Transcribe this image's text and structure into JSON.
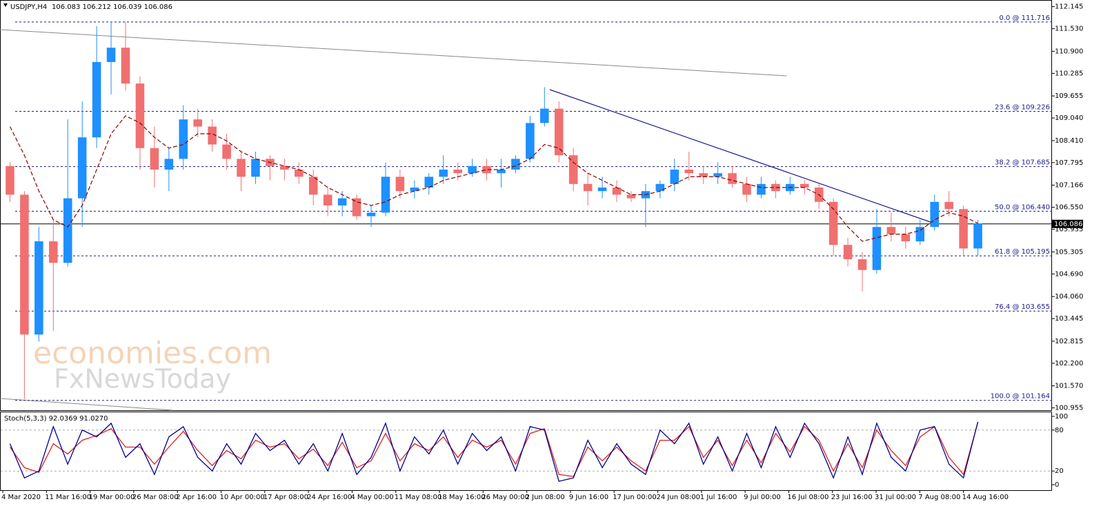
{
  "chart_data": {
    "type": "candlestick",
    "symbol": "USDJPY,H4",
    "quote": "106.083 106.212 106.039 106.086",
    "bull_color": "#1e90ff",
    "bear_color": "#f07070",
    "ma_color": "#8b0000",
    "ylim": [
      100.89,
      112.33
    ],
    "yticks": [
      112.145,
      {
        "value": 111.53,
        "label": "111.530"
      },
      {
        "value": 110.9,
        "label": "110.900"
      },
      110.285,
      109.655,
      {
        "value": 109.04,
        "label": "109.040"
      },
      {
        "value": 108.41,
        "label": "108.410"
      },
      107.795,
      107.166,
      {
        "value": 106.55,
        "label": "106.550"
      },
      105.935,
      105.305,
      {
        "value": 104.69,
        "label": "104.690"
      },
      {
        "value": 104.06,
        "label": "104.060"
      },
      103.445,
      102.815,
      {
        "value": 102.2,
        "label": "102.200"
      },
      {
        "value": 101.57,
        "label": "101.570"
      },
      100.955
    ],
    "current_price": 106.086,
    "fib_levels": [
      {
        "value": 111.716,
        "label": "0.0 @ 111.716"
      },
      {
        "value": 109.226,
        "label": "23.6 @ 109.226"
      },
      {
        "value": 107.685,
        "label": "38.2 @ 107.685"
      },
      {
        "value": 106.44,
        "label": "50.0 @ 106.440"
      },
      {
        "value": 105.195,
        "label": "61.8 @ 105.195"
      },
      {
        "value": 103.655,
        "label": "76.4 @ 103.655"
      },
      {
        "value": 101.164,
        "label": "100.0 @ 101.164"
      }
    ],
    "time_labels": [
      "4 Mar 2020",
      "11 Mar 16:00",
      "19 Mar 00:00",
      "26 Mar 08:00",
      "2 Apr 16:00",
      "10 Apr 00:00",
      "17 Apr 08:00",
      "24 Apr 16:00",
      "4 May 00:00",
      "11 May 08:00",
      "18 May 16:00",
      "26 May 00:00",
      "2 Jun 08:00",
      "9 Jun 16:00",
      "17 Jun 00:00",
      "24 Jun 08:00",
      "1 Jul 16:00",
      "9 Jul 00:00",
      "16 Jul 08:00",
      "23 Jul 16:00",
      "31 Jul 00:00",
      "7 Aug 08:00",
      "14 Aug 16:00"
    ],
    "ohlc": [
      [
        107.7,
        107.8,
        106.7,
        106.9
      ],
      [
        106.9,
        107.0,
        101.2,
        103.0
      ],
      [
        103.0,
        106.0,
        102.8,
        105.6
      ],
      [
        105.6,
        106.2,
        103.1,
        105.0
      ],
      [
        105.0,
        109.0,
        104.9,
        106.8
      ],
      [
        106.8,
        109.5,
        106.0,
        108.5
      ],
      [
        108.5,
        111.6,
        108.2,
        110.6
      ],
      [
        110.6,
        111.7,
        109.7,
        111.0
      ],
      [
        111.0,
        111.72,
        109.8,
        110.0
      ],
      [
        110.0,
        110.2,
        107.6,
        108.2
      ],
      [
        108.2,
        108.8,
        107.1,
        107.6
      ],
      [
        107.6,
        108.2,
        107.0,
        107.9
      ],
      [
        107.9,
        109.4,
        107.6,
        109.0
      ],
      [
        109.0,
        109.3,
        108.5,
        108.8
      ],
      [
        108.8,
        109.0,
        108.1,
        108.3
      ],
      [
        108.3,
        108.6,
        107.6,
        107.9
      ],
      [
        107.9,
        108.1,
        107.0,
        107.4
      ],
      [
        107.4,
        108.1,
        107.2,
        107.9
      ],
      [
        107.9,
        108.0,
        107.3,
        107.7
      ],
      [
        107.7,
        107.9,
        107.3,
        107.6
      ],
      [
        107.6,
        107.8,
        107.2,
        107.4
      ],
      [
        107.4,
        107.6,
        106.6,
        106.9
      ],
      [
        106.9,
        107.1,
        106.3,
        106.6
      ],
      [
        106.6,
        107.0,
        106.3,
        106.8
      ],
      [
        106.8,
        106.9,
        106.2,
        106.3
      ],
      [
        106.3,
        106.6,
        106.0,
        106.4
      ],
      [
        106.4,
        107.8,
        106.3,
        107.4
      ],
      [
        107.4,
        107.6,
        106.8,
        107.0
      ],
      [
        107.0,
        107.3,
        106.8,
        107.1
      ],
      [
        107.1,
        107.5,
        106.9,
        107.4
      ],
      [
        107.4,
        108.0,
        107.2,
        107.6
      ],
      [
        107.6,
        107.8,
        107.3,
        107.5
      ],
      [
        107.5,
        107.9,
        107.4,
        107.7
      ],
      [
        107.7,
        107.9,
        107.3,
        107.5
      ],
      [
        107.5,
        107.9,
        107.1,
        107.6
      ],
      [
        107.6,
        108.0,
        107.5,
        107.9
      ],
      [
        107.9,
        109.1,
        107.8,
        108.9
      ],
      [
        108.9,
        109.9,
        108.8,
        109.3
      ],
      [
        109.3,
        109.5,
        107.8,
        108.0
      ],
      [
        108.0,
        108.2,
        107.0,
        107.2
      ],
      [
        107.2,
        107.5,
        106.6,
        107.0
      ],
      [
        107.0,
        107.4,
        106.8,
        107.1
      ],
      [
        107.1,
        107.3,
        106.7,
        106.9
      ],
      [
        106.9,
        107.0,
        106.7,
        106.8
      ],
      [
        106.8,
        107.2,
        106.0,
        107.0
      ],
      [
        107.0,
        107.3,
        106.8,
        107.2
      ],
      [
        107.2,
        107.9,
        107.0,
        107.6
      ],
      [
        107.6,
        108.1,
        107.3,
        107.5
      ],
      [
        107.5,
        107.7,
        107.2,
        107.4
      ],
      [
        107.4,
        107.8,
        107.2,
        107.5
      ],
      [
        107.5,
        107.7,
        107.1,
        107.2
      ],
      [
        107.2,
        107.4,
        106.7,
        106.9
      ],
      [
        106.9,
        107.4,
        106.8,
        107.2
      ],
      [
        107.2,
        107.3,
        106.8,
        107.0
      ],
      [
        107.0,
        107.4,
        106.9,
        107.2
      ],
      [
        107.2,
        107.3,
        106.9,
        107.1
      ],
      [
        107.1,
        107.2,
        106.5,
        106.7
      ],
      [
        106.7,
        106.8,
        105.2,
        105.5
      ],
      [
        105.5,
        105.7,
        104.9,
        105.1
      ],
      [
        105.1,
        105.3,
        104.2,
        104.8
      ],
      [
        104.8,
        106.5,
        104.7,
        106.0
      ],
      [
        106.0,
        106.4,
        105.6,
        105.8
      ],
      [
        105.8,
        106.0,
        105.4,
        105.6
      ],
      [
        105.6,
        106.2,
        105.5,
        106.0
      ],
      [
        106.0,
        106.9,
        105.9,
        106.7
      ],
      [
        106.7,
        107.0,
        106.3,
        106.5
      ],
      [
        106.5,
        106.6,
        105.2,
        105.4
      ],
      [
        105.4,
        106.2,
        105.2,
        106.1
      ]
    ],
    "ma": [
      108.8,
      108.0,
      107.0,
      106.2,
      106.0,
      106.6,
      107.6,
      108.6,
      109.1,
      108.9,
      108.5,
      108.2,
      108.3,
      108.6,
      108.6,
      108.4,
      108.1,
      107.9,
      107.8,
      107.7,
      107.6,
      107.4,
      107.1,
      106.9,
      106.7,
      106.6,
      106.7,
      106.9,
      107.0,
      107.1,
      107.3,
      107.4,
      107.5,
      107.6,
      107.6,
      107.7,
      107.9,
      108.3,
      108.2,
      107.8,
      107.5,
      107.3,
      107.1,
      106.9,
      106.9,
      107.0,
      107.2,
      107.4,
      107.4,
      107.4,
      107.3,
      107.2,
      107.1,
      107.1,
      107.1,
      107.1,
      106.9,
      106.5,
      106.0,
      105.6,
      105.7,
      105.8,
      105.8,
      105.9,
      106.2,
      106.4,
      106.3,
      106.1
    ],
    "watermark": [
      "economies.com",
      "FxNewsToday"
    ],
    "stoch": {
      "title": "Stoch(5,3,3) 92.0369 91.0270",
      "ylim": [
        -8,
        107
      ],
      "yticks": [
        100,
        80,
        20,
        0
      ],
      "series": [
        {
          "color": "#00008b",
          "values": [
            60,
            10,
            20,
            85,
            30,
            80,
            70,
            90,
            40,
            60,
            15,
            70,
            85,
            40,
            20,
            60,
            30,
            75,
            50,
            65,
            30,
            60,
            20,
            75,
            15,
            40,
            90,
            20,
            70,
            45,
            80,
            30,
            75,
            50,
            70,
            20,
            85,
            80,
            5,
            10,
            65,
            25,
            60,
            30,
            15,
            80,
            60,
            90,
            30,
            70,
            20,
            75,
            25,
            85,
            40,
            90,
            60,
            10,
            70,
            15,
            90,
            40,
            20,
            80,
            85,
            30,
            10,
            92
          ]
        },
        {
          "color": "#e02020",
          "values": [
            55,
            25,
            18,
            60,
            45,
            65,
            72,
            82,
            55,
            55,
            30,
            55,
            78,
            50,
            28,
            50,
            38,
            65,
            55,
            60,
            38,
            52,
            28,
            62,
            25,
            35,
            75,
            35,
            60,
            50,
            70,
            40,
            65,
            55,
            65,
            30,
            75,
            82,
            15,
            12,
            55,
            35,
            55,
            35,
            20,
            65,
            65,
            85,
            40,
            65,
            28,
            65,
            32,
            75,
            48,
            85,
            65,
            20,
            60,
            25,
            80,
            50,
            28,
            70,
            85,
            40,
            15,
            91
          ]
        }
      ]
    }
  }
}
